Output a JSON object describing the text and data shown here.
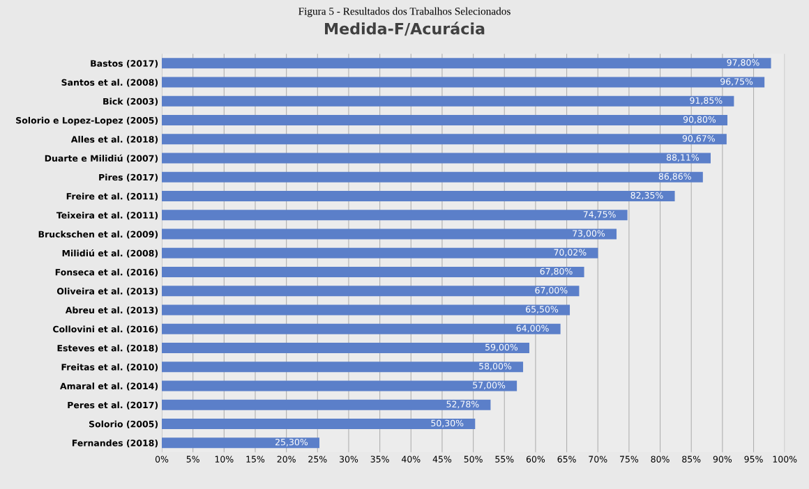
{
  "chart_data": {
    "type": "bar",
    "orientation": "horizontal",
    "title": "Medida-F/Acurácia",
    "annotations": [
      "Figura 5 - Resultados dos Trabalhos Selecionados"
    ],
    "categories": [
      "Bastos (2017)",
      "Santos et al. (2008)",
      "Bick (2003)",
      "Solorio e Lopez-Lopez (2005)",
      "Alles et al. (2018)",
      "Duarte e Milidiú (2007)",
      "Pires (2017)",
      "Freire et al. (2011)",
      "Teixeira et al. (2011)",
      "Bruckschen et al. (2009)",
      "Milidiú et al. (2008)",
      "Fonseca et al. (2016)",
      "Oliveira et al. (2013)",
      "Abreu et al. (2013)",
      "Collovini et al. (2016)",
      "Esteves et al. (2018)",
      "Freitas et al. (2010)",
      "Amaral et al. (2014)",
      "Peres et al. (2017)",
      "Solorio (2005)",
      "Fernandes (2018)"
    ],
    "values": [
      97.8,
      96.75,
      91.85,
      90.8,
      90.67,
      88.11,
      86.86,
      82.35,
      74.75,
      73.0,
      70.02,
      67.8,
      67.0,
      65.5,
      64.0,
      59.0,
      58.0,
      57.0,
      52.78,
      50.3,
      25.3
    ],
    "value_labels": [
      "97,80%",
      "96,75%",
      "91,85%",
      "90,80%",
      "90,67%",
      "88,11%",
      "86,86%",
      "82,35%",
      "74,75%",
      "73,00%",
      "70,02%",
      "67,80%",
      "67,00%",
      "65,50%",
      "64,00%",
      "59,00%",
      "58,00%",
      "57,00%",
      "52,78%",
      "50,30%",
      "25,30%"
    ],
    "color": "#5b7fc9",
    "xlim": [
      0,
      100
    ],
    "xticks": [
      {
        "value": 0,
        "label": "0%"
      },
      {
        "value": 5,
        "label": "5%"
      },
      {
        "value": 10,
        "label": "10%"
      },
      {
        "value": 15,
        "label": "15%"
      },
      {
        "value": 20,
        "label": "20%"
      },
      {
        "value": 25,
        "label": "25%"
      },
      {
        "value": 30,
        "label": "30%"
      },
      {
        "value": 35,
        "label": "35%"
      },
      {
        "value": 40,
        "label": "40%"
      },
      {
        "value": 45,
        "label": "45%"
      },
      {
        "value": 50,
        "label": "50%"
      },
      {
        "value": 55,
        "label": "55%"
      },
      {
        "value": 60,
        "label": "60%"
      },
      {
        "value": 65,
        "label": "65%"
      },
      {
        "value": 70,
        "label": "70%"
      },
      {
        "value": 75,
        "label": "75%"
      },
      {
        "value": 80,
        "label": "80%"
      },
      {
        "value": 85,
        "label": "85%"
      },
      {
        "value": 90,
        "label": "90%"
      },
      {
        "value": 95,
        "label": "95%"
      },
      {
        "value": 100,
        "label": "100%"
      }
    ],
    "grid": "x",
    "legend": false
  }
}
